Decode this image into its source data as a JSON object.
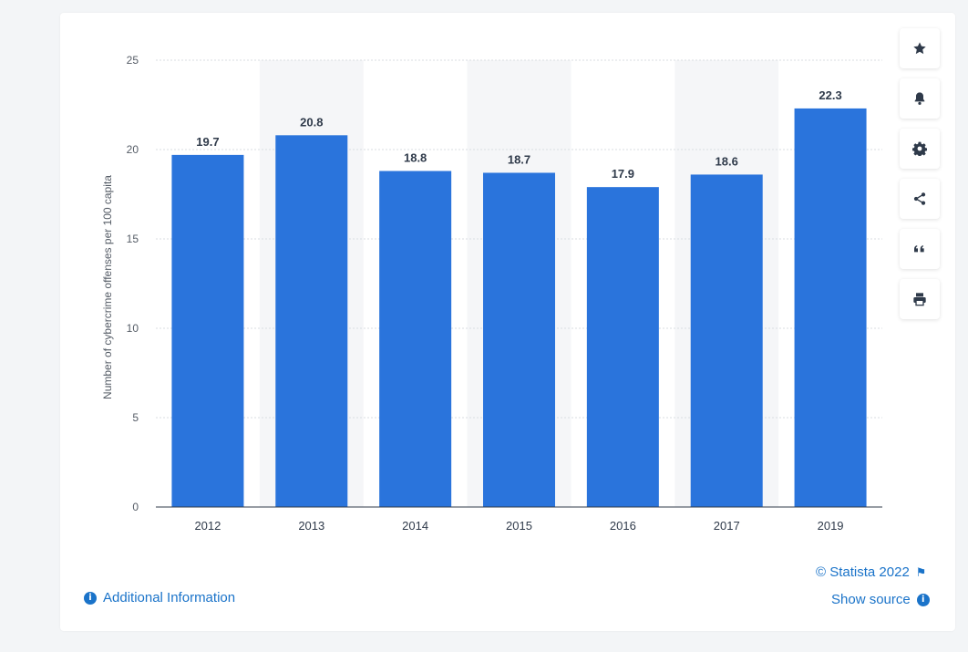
{
  "chart_data": {
    "type": "bar",
    "categories": [
      "2012",
      "2013",
      "2014",
      "2015",
      "2016",
      "2017",
      "2019"
    ],
    "values": [
      19.7,
      20.8,
      18.8,
      18.7,
      17.9,
      18.6,
      22.3
    ],
    "value_labels": [
      "19.7",
      "20.8",
      "18.8",
      "18.7",
      "17.9",
      "18.6",
      "22.3"
    ],
    "ylabel": "Number of cybercrime offenses per 100 capita",
    "xlabel": "",
    "ylim": [
      0,
      25
    ],
    "yticks": [
      "0",
      "5",
      "10",
      "15",
      "20",
      "25"
    ],
    "ytick_values": [
      0,
      5,
      10,
      15,
      20,
      25
    ],
    "bar_color": "#2a74dc",
    "alternate_band_color": "#f5f6f8",
    "grid": true
  },
  "toolbar": [
    {
      "icon": "star-icon"
    },
    {
      "icon": "bell-icon"
    },
    {
      "icon": "gear-icon"
    },
    {
      "icon": "share-icon"
    },
    {
      "icon": "quote-icon"
    },
    {
      "icon": "print-icon"
    }
  ],
  "footer": {
    "copyright": "© Statista 2022",
    "additional_info": "Additional Information",
    "show_source": "Show source"
  },
  "colors": {
    "link": "#1a73c9",
    "bar": "#2a74dc",
    "background": "#f3f5f7"
  }
}
